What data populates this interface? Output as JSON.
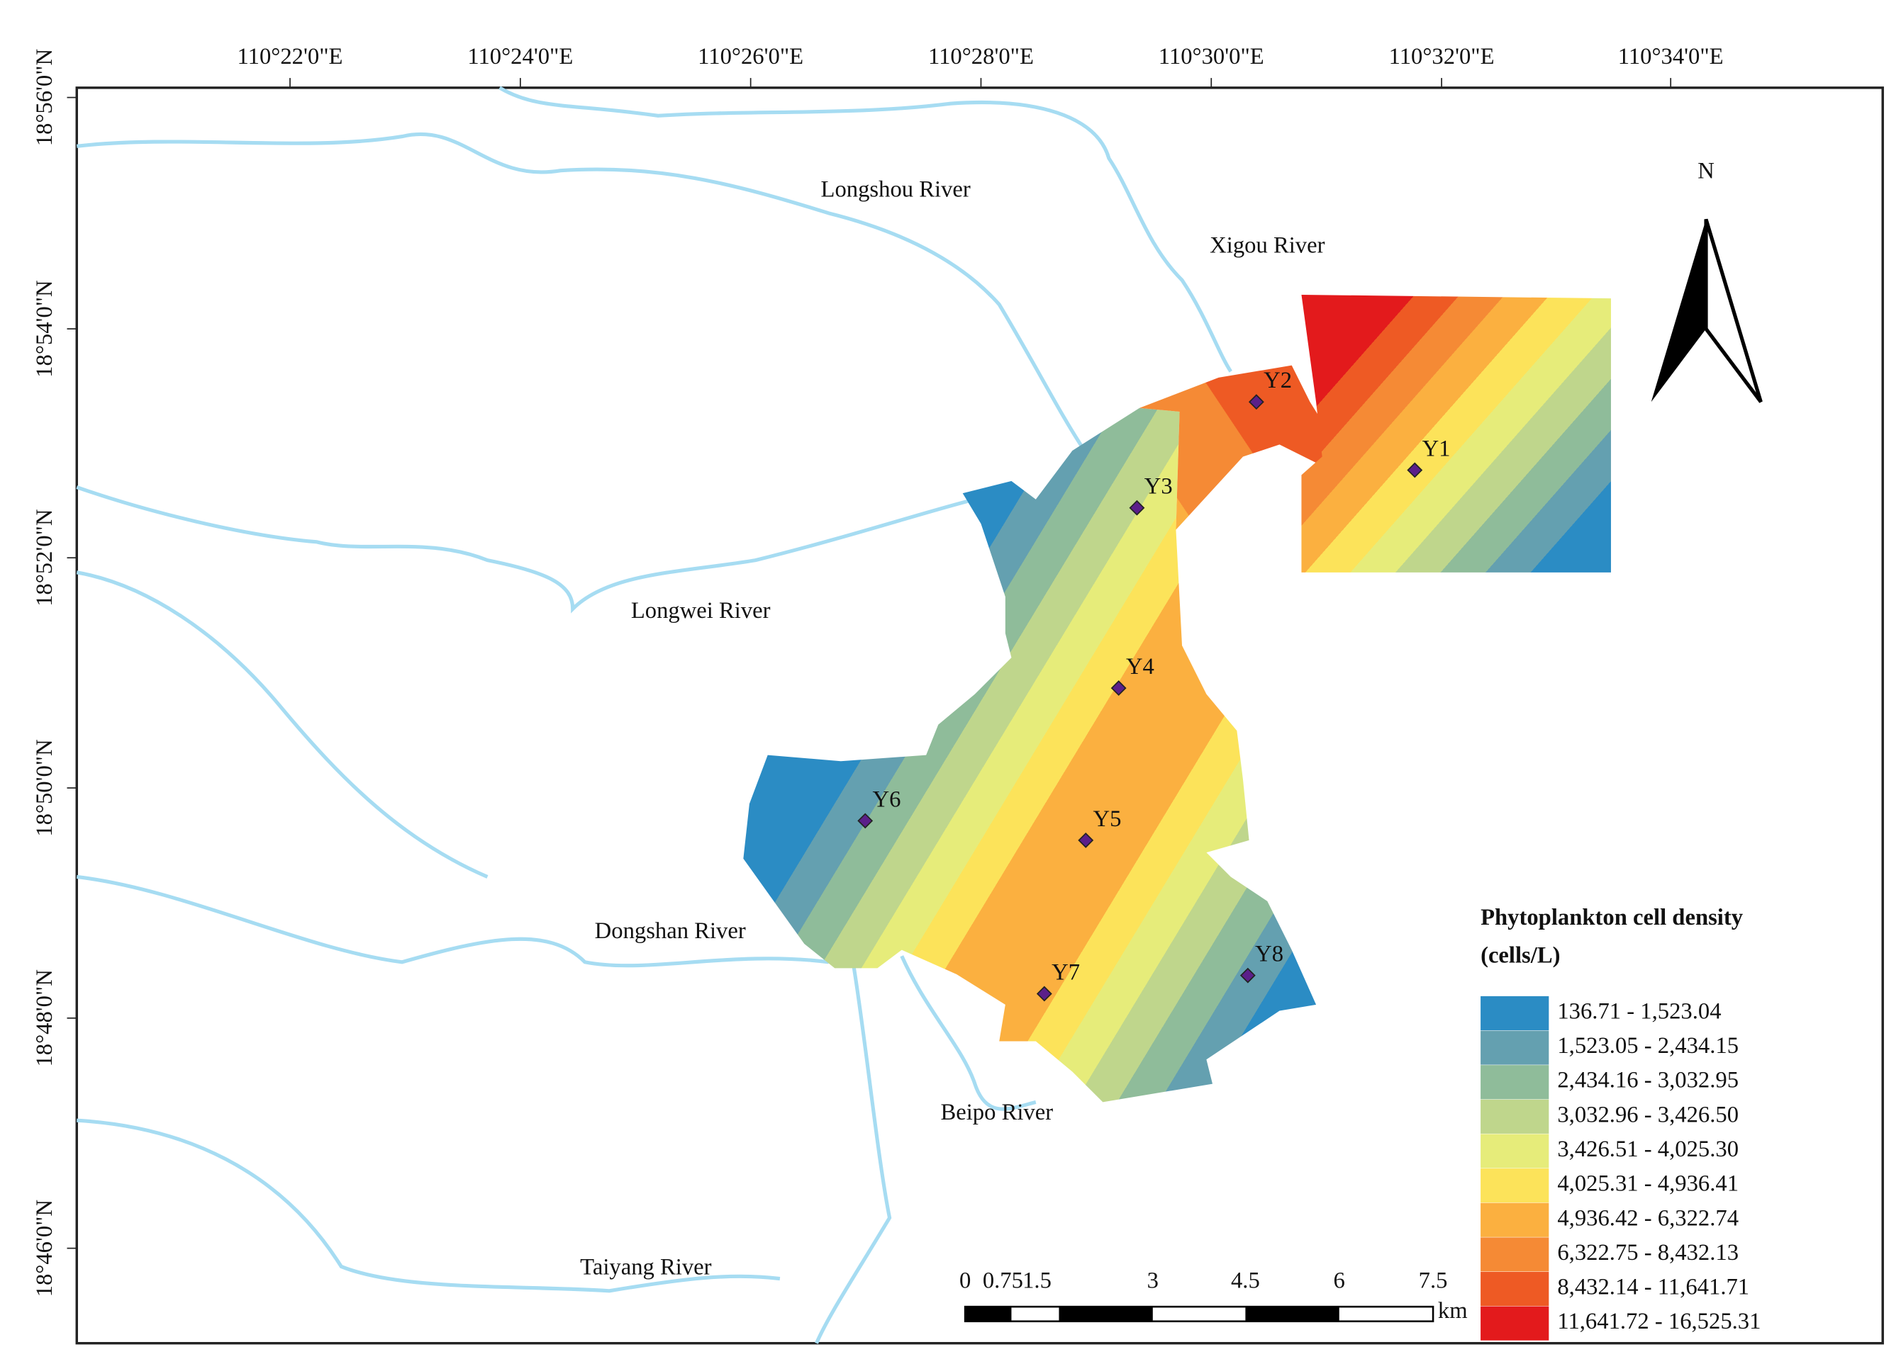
{
  "axes": {
    "top": [
      "110°22'0\"E",
      "110°24'0\"E",
      "110°26'0\"E",
      "110°28'0\"E",
      "110°30'0\"E",
      "110°32'0\"E",
      "110°34'0\"E"
    ],
    "left": [
      "18°56'0\"N",
      "18°54'0\"N",
      "18°52'0\"N",
      "18°50'0\"N",
      "18°48'0\"N",
      "18°46'0\"N"
    ]
  },
  "rivers": [
    "Longshou River",
    "Xigou River",
    "Longwei River",
    "Dongshan River",
    "Beipo River",
    "Taiyang River"
  ],
  "stations": [
    "Y1",
    "Y2",
    "Y3",
    "Y4",
    "Y5",
    "Y6",
    "Y7",
    "Y8"
  ],
  "north": "N",
  "legend": {
    "title": [
      "Phytoplankton cell density",
      "(cells/L)"
    ],
    "classes": [
      {
        "label": "136.71 - 1,523.04",
        "color": "#2b8cc4"
      },
      {
        "label": "1,523.05 - 2,434.15",
        "color": "#64a0b0"
      },
      {
        "label": "2,434.16 - 3,032.95",
        "color": "#8fbc9a"
      },
      {
        "label": "3,032.96 - 3,426.50",
        "color": "#bfd68c"
      },
      {
        "label": "3,426.51 - 4,025.30",
        "color": "#e6ec7a"
      },
      {
        "label": "4,025.31 - 4,936.41",
        "color": "#fce35a"
      },
      {
        "label": "4,936.42 - 6,322.74",
        "color": "#fbb040"
      },
      {
        "label": "6,322.75 - 8,432.13",
        "color": "#f58a35"
      },
      {
        "label": "8,432.14 - 11,641.71",
        "color": "#ee5a24"
      },
      {
        "label": "11,641.72 - 16,525.31",
        "color": "#e31a1c"
      }
    ]
  },
  "scale_bar": {
    "labels": [
      "0",
      "0.75",
      "1.5",
      "3",
      "4.5",
      "6",
      "7.5"
    ],
    "unit": "km"
  }
}
